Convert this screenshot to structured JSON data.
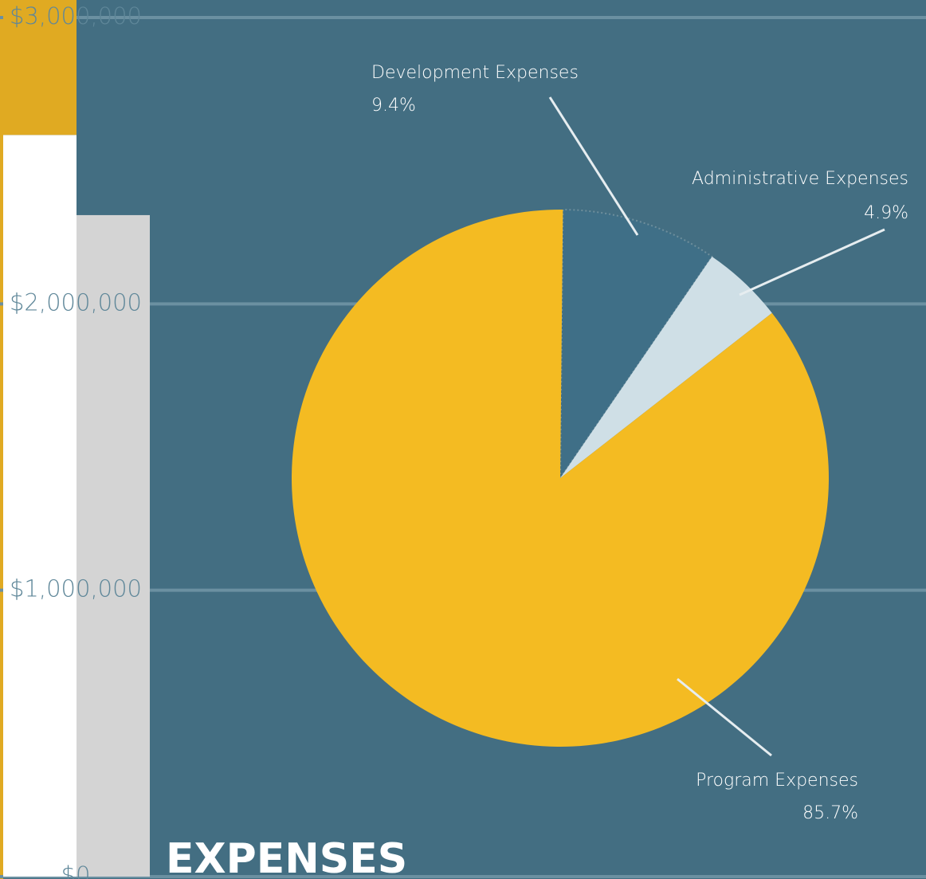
{
  "chart_data": [
    {
      "type": "bar",
      "categories": [
        null,
        null
      ],
      "series": [
        {
          "colors": [
            "#ffffff",
            "#d4d4d4"
          ],
          "values": [
            2590000,
            2310000
          ]
        },
        {
          "colors": [
            "#e0aa22",
            "#e0aa22"
          ],
          "values": [
            560000,
            null
          ]
        }
      ],
      "ylim": [
        0,
        3000000
      ],
      "yticks": [
        {
          "value": 0,
          "label": "$0"
        },
        {
          "value": 1000000,
          "label": "$1,000,000"
        },
        {
          "value": 2000000,
          "label": "$2,000,000"
        },
        {
          "value": 3000000,
          "label": "$3,000,000"
        }
      ],
      "grid": true
    },
    {
      "type": "pie",
      "title": "EXPENSES",
      "categories": [
        "Development Expenses",
        "Administrative Expenses",
        "Program Expenses"
      ],
      "values": [
        9.4,
        4.9,
        85.7
      ],
      "value_labels": [
        "9.4%",
        "4.9%",
        "85.7%"
      ],
      "colors": [
        "#3f6f87",
        "#cfdfe6",
        "#f4bb22"
      ]
    }
  ]
}
